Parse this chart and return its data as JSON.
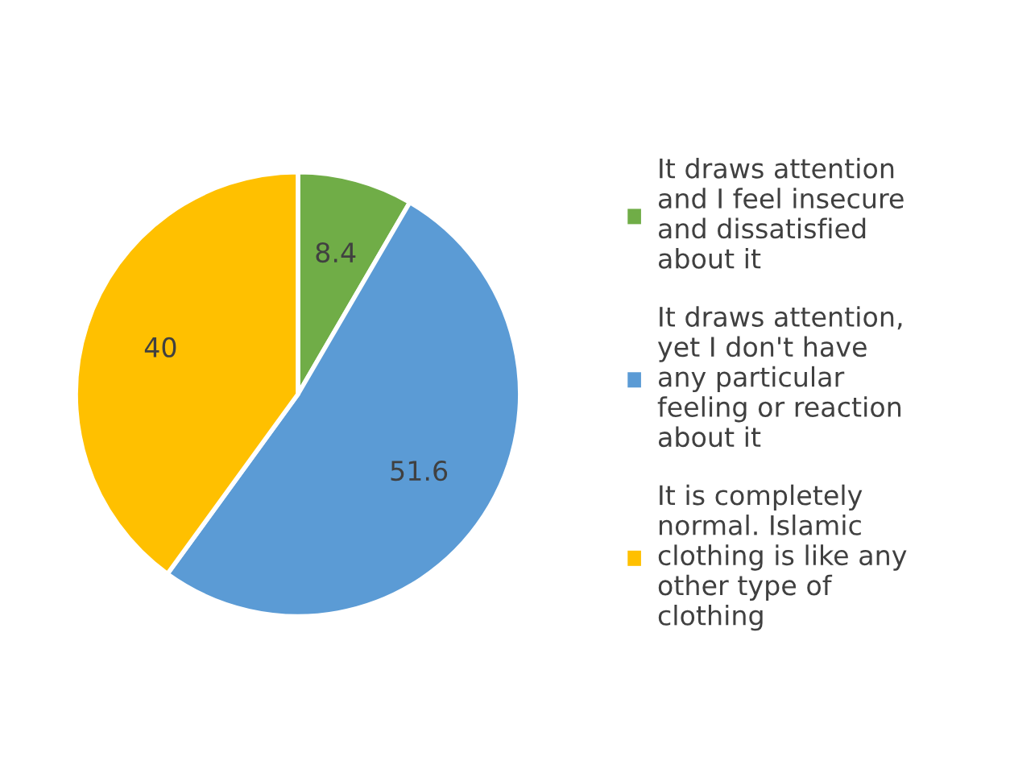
{
  "chart_data": {
    "type": "pie",
    "categories": [
      "It draws attention\nand I feel insecure\nand dissatisfied\nabout it",
      "It draws attention,\nyet I don't have\nany particular\nfeeling or reaction\nabout it",
      "It is completely\nnormal. Islamic\nclothing is like any\nother type of\nclothing"
    ],
    "values": [
      8.4,
      51.6,
      40
    ],
    "colors": [
      "#70ad47",
      "#5b9bd5",
      "#ffc000"
    ],
    "data_labels": true,
    "legend": "right"
  }
}
